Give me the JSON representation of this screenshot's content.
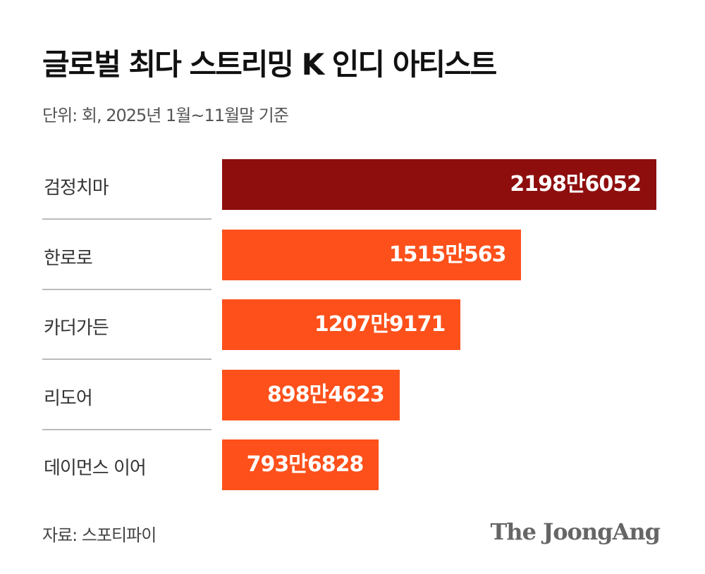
{
  "chart_data": {
    "type": "bar",
    "orientation": "horizontal",
    "title": "글로벌 최다 스트리밍 K 인디 아티스트",
    "subtitle": "단위: 회, 2025년 1월~11월말 기준",
    "categories": [
      "검정치마",
      "한로로",
      "카더가든",
      "리도어",
      "데이먼스 이어"
    ],
    "values": [
      21986052,
      15150563,
      12079171,
      8984623,
      7936828
    ],
    "data_labels": [
      "2198만6052",
      "1515만563",
      "1207만9171",
      "898만4623",
      "793만6828"
    ],
    "xlim": [
      0,
      21986052
    ],
    "grid": false,
    "colors": {
      "highlight": "#8e0e0e",
      "default": "#fd501b"
    },
    "source": "자료: 스포티파이"
  },
  "logo": "The JoongAng"
}
